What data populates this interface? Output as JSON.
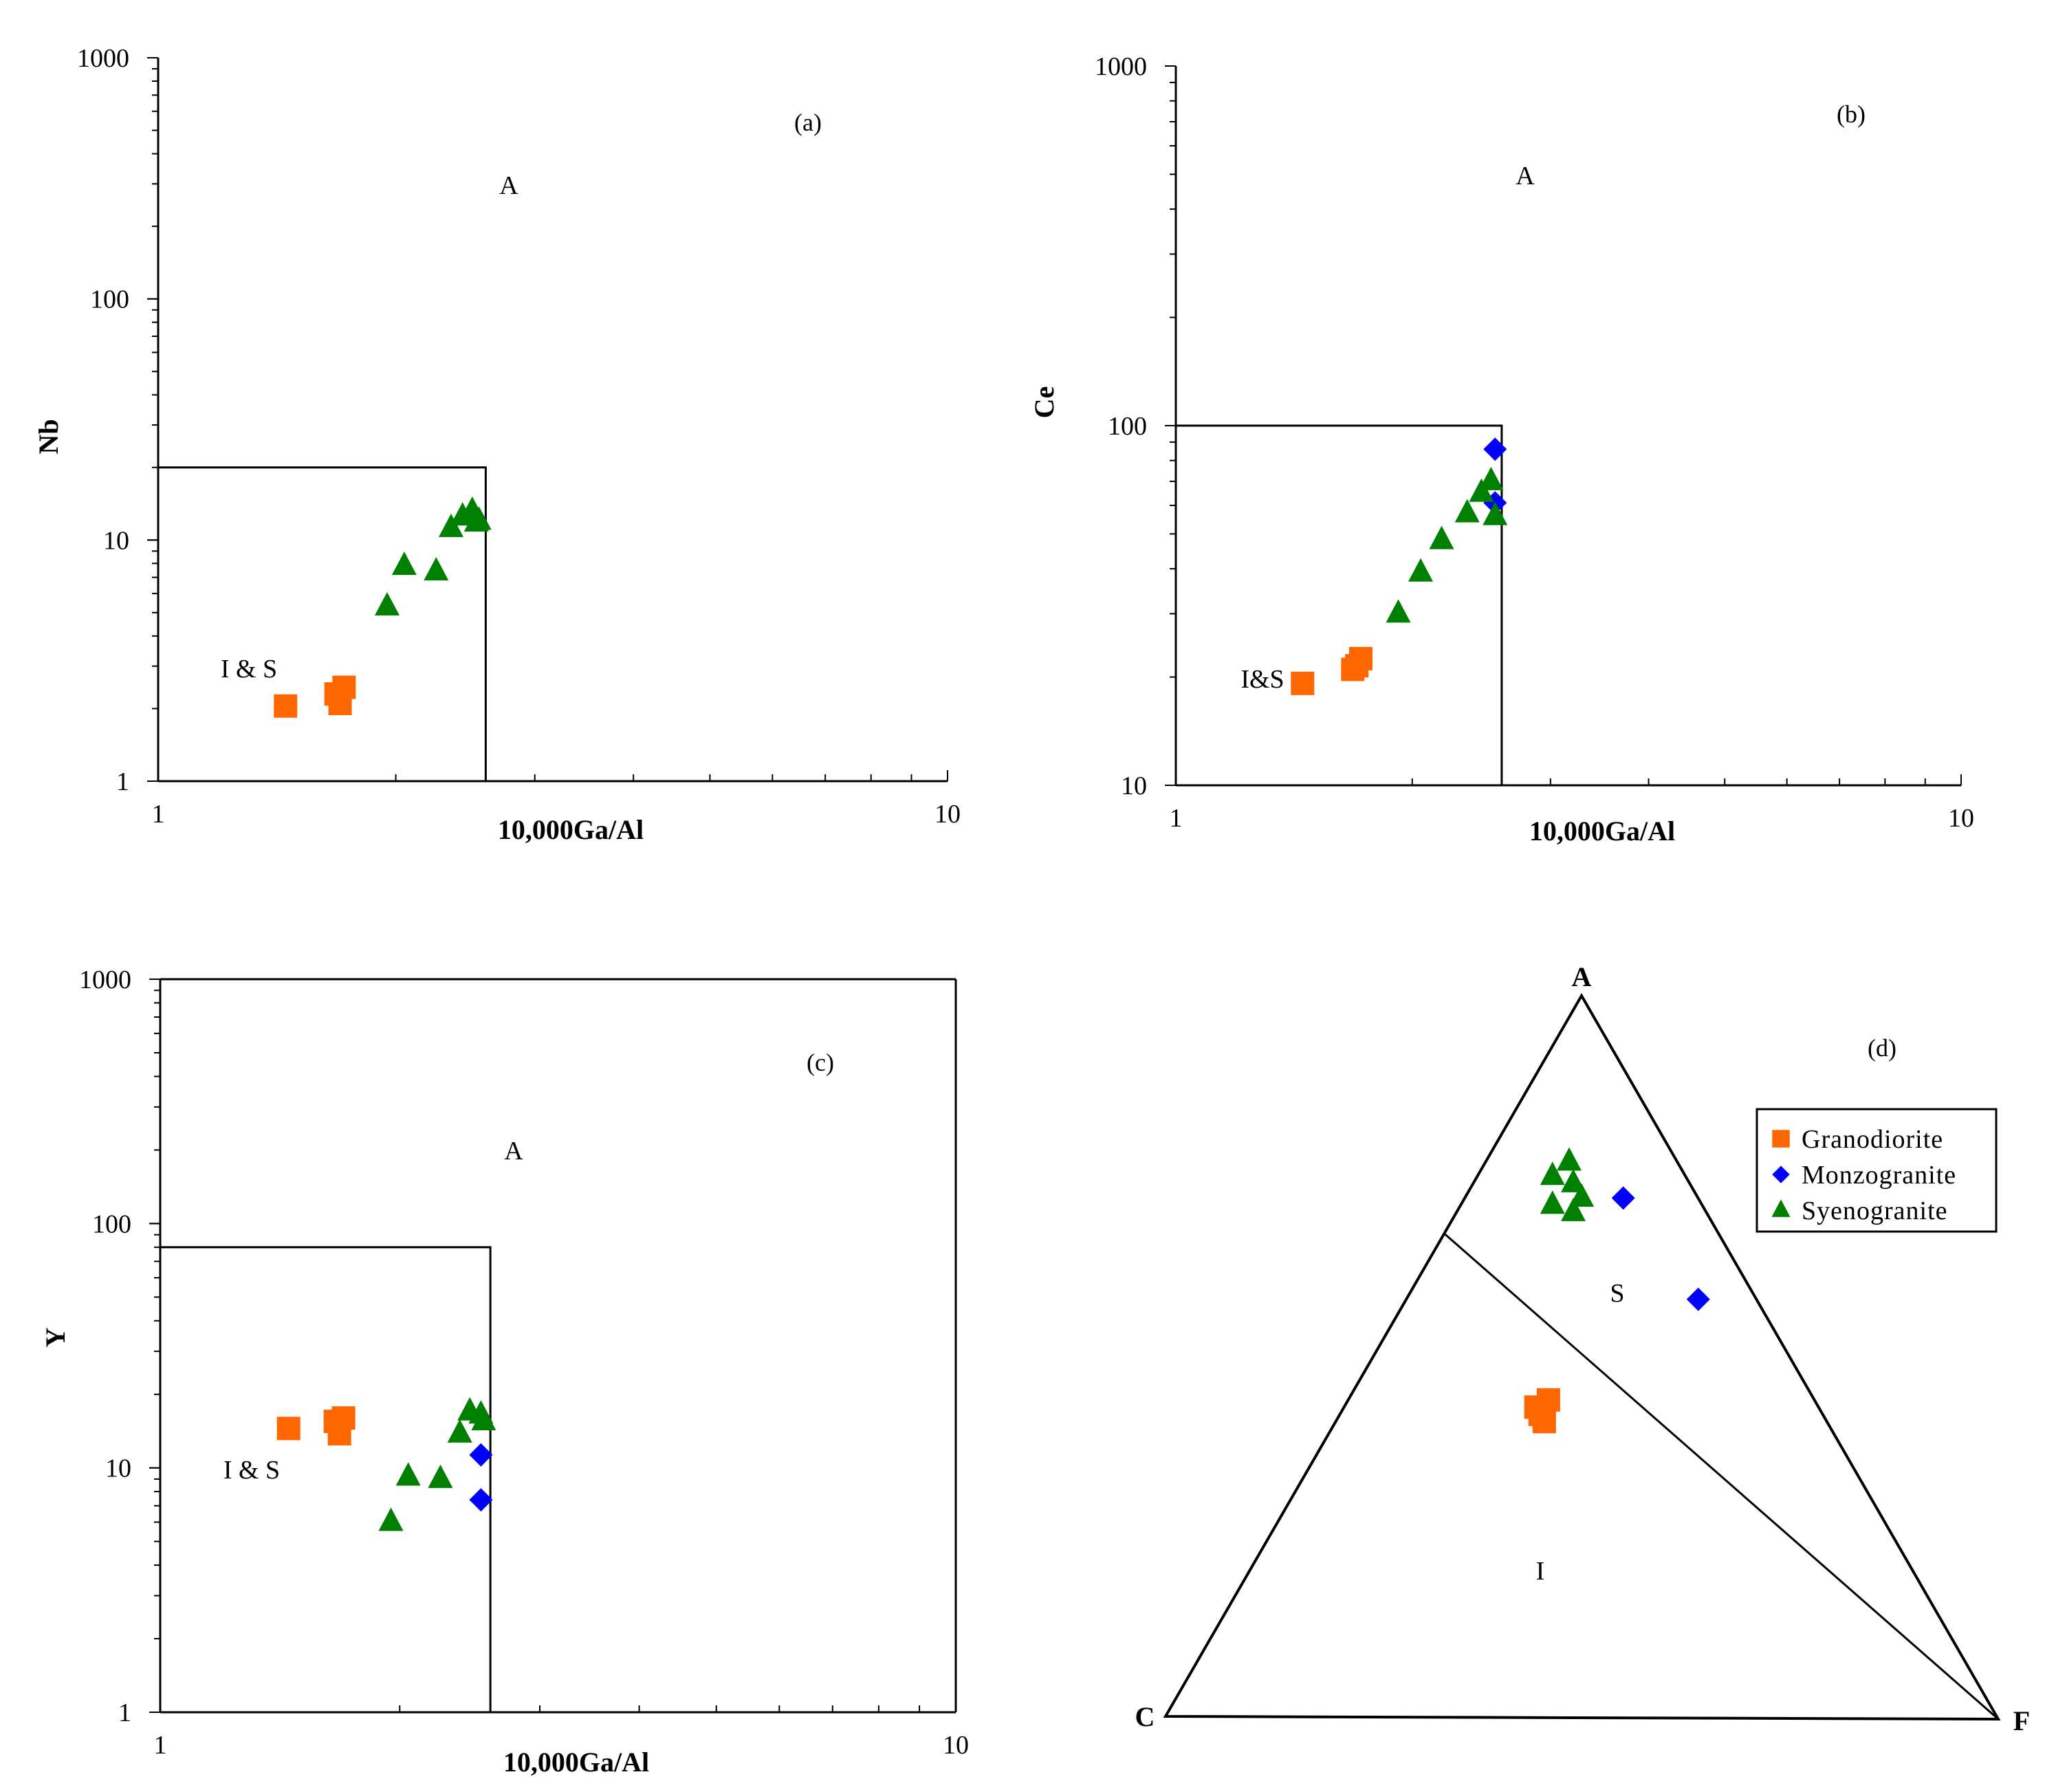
{
  "colors": {
    "granodiorite": "#ff6600",
    "monzogranite": "#0000ff",
    "syenogranite": "#008000",
    "axis": "#000000"
  },
  "legend": {
    "items": [
      {
        "name": "Granodiorite",
        "marker": "square",
        "color": "#ff6600"
      },
      {
        "name": "Monzogranite",
        "marker": "diamond",
        "color": "#0000ff"
      },
      {
        "name": "Syenogranite",
        "marker": "triangle",
        "color": "#008000"
      }
    ]
  },
  "chart_data": [
    {
      "id": "a",
      "type": "scatter",
      "tag": "(a)",
      "xlabel": "10,000Ga/Al",
      "ylabel": "Nb",
      "xscale": "log",
      "yscale": "log",
      "xlim": [
        1,
        10
      ],
      "ylim": [
        1,
        1000
      ],
      "x_ticks": [
        "1",
        "10"
      ],
      "y_ticks": [
        "1",
        "10",
        "100",
        "1000"
      ],
      "field_boundary": {
        "x": 2.6,
        "y": 20
      },
      "region_labels": {
        "outside": "A",
        "inside": "I & S"
      },
      "series": [
        {
          "name": "Granodiorite",
          "points": [
            [
              1.45,
              2.05
            ],
            [
              1.68,
              2.3
            ],
            [
              1.7,
              2.1
            ],
            [
              1.72,
              2.45
            ]
          ]
        },
        {
          "name": "Monzogranite",
          "points": []
        },
        {
          "name": "Syenogranite",
          "points": [
            [
              1.95,
              5.3
            ],
            [
              2.05,
              7.8
            ],
            [
              2.25,
              7.4
            ],
            [
              2.35,
              11.2
            ],
            [
              2.43,
              12.5
            ],
            [
              2.5,
              13.2
            ],
            [
              2.53,
              11.8
            ],
            [
              2.55,
              12.0
            ]
          ]
        }
      ]
    },
    {
      "id": "b",
      "type": "scatter",
      "tag": "(b)",
      "xlabel": "10,000Ga/Al",
      "ylabel": "Ce",
      "xscale": "log",
      "yscale": "log",
      "xlim": [
        1,
        10
      ],
      "ylim": [
        10,
        1000
      ],
      "x_ticks": [
        "1",
        "10"
      ],
      "y_ticks": [
        "10",
        "100",
        "1000"
      ],
      "field_boundary": {
        "x": 2.6,
        "y": 100
      },
      "region_labels": {
        "outside": "A",
        "inside": "I&S"
      },
      "series": [
        {
          "name": "Granodiorite",
          "points": [
            [
              1.45,
              19.2
            ],
            [
              1.68,
              21.0
            ],
            [
              1.7,
              21.5
            ],
            [
              1.72,
              22.5
            ]
          ]
        },
        {
          "name": "Monzogranite",
          "points": [
            [
              2.55,
              86
            ],
            [
              2.55,
              61
            ]
          ]
        },
        {
          "name": "Syenogranite",
          "points": [
            [
              1.92,
              30
            ],
            [
              2.05,
              39
            ],
            [
              2.18,
              48
            ],
            [
              2.35,
              57
            ],
            [
              2.45,
              65
            ],
            [
              2.52,
              70
            ],
            [
              2.55,
              56
            ]
          ]
        }
      ]
    },
    {
      "id": "c",
      "type": "scatter",
      "tag": "(c)",
      "xlabel": "10,000Ga/Al",
      "ylabel": "Y",
      "xscale": "log",
      "yscale": "log",
      "xlim": [
        1,
        10
      ],
      "ylim": [
        1,
        1000
      ],
      "x_ticks": [
        "1",
        "10"
      ],
      "y_ticks": [
        "1",
        "10",
        "100",
        "1000"
      ],
      "field_boundary": {
        "x": 2.6,
        "y": 80
      },
      "region_labels": {
        "outside": "A",
        "inside": "I & S"
      },
      "series": [
        {
          "name": "Granodiorite",
          "points": [
            [
              1.45,
              14.5
            ],
            [
              1.66,
              15.5
            ],
            [
              1.68,
              13.8
            ],
            [
              1.7,
              16.0
            ]
          ]
        },
        {
          "name": "Monzogranite",
          "points": [
            [
              2.53,
              11.3
            ],
            [
              2.53,
              7.4
            ]
          ]
        },
        {
          "name": "Syenogranite",
          "points": [
            [
              1.95,
              6.0
            ],
            [
              2.05,
              9.2
            ],
            [
              2.25,
              9.0
            ],
            [
              2.38,
              13.8
            ],
            [
              2.45,
              17.0
            ],
            [
              2.53,
              16.5
            ],
            [
              2.55,
              15.5
            ]
          ]
        }
      ]
    },
    {
      "id": "d",
      "type": "scatter",
      "subtype": "ternary",
      "tag": "(d)",
      "vertex_labels": {
        "top": "A",
        "left": "C",
        "right": "F"
      },
      "field_labels": {
        "upper": "S",
        "lower": "I"
      },
      "divider": {
        "from_AC": [
          0.67,
          0.33
        ],
        "to": "F"
      },
      "series": [
        {
          "name": "Granodiorite",
          "points": [
            [
              0.43,
              0.34,
              0.23
            ],
            [
              0.44,
              0.32,
              0.24
            ],
            [
              0.42,
              0.34,
              0.24
            ],
            [
              0.41,
              0.34,
              0.25
            ]
          ]
        },
        {
          "name": "Monzogranite",
          "points": [
            [
              0.72,
              0.09,
              0.19
            ],
            [
              0.58,
              0.07,
              0.35
            ]
          ]
        },
        {
          "name": "Syenogranite",
          "points": [
            [
              0.77,
              0.13,
              0.1
            ],
            [
              0.74,
              0.14,
              0.12
            ],
            [
              0.72,
              0.14,
              0.14
            ],
            [
              0.7,
              0.16,
              0.14
            ],
            [
              0.75,
              0.16,
              0.09
            ],
            [
              0.71,
              0.18,
              0.11
            ]
          ]
        }
      ]
    }
  ]
}
